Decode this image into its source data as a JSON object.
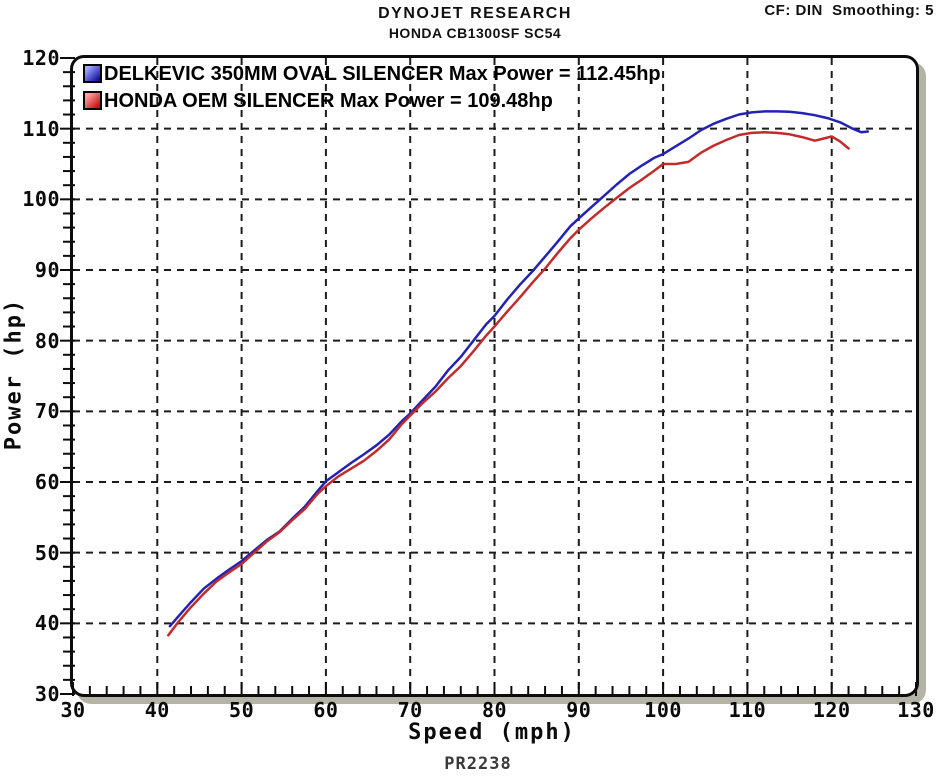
{
  "header": {
    "title": "DYNOJET RESEARCH",
    "subtitle": "HONDA CB1300SF SC54",
    "cf_label": "CF: DIN  Smoothing: 5"
  },
  "footer": {
    "run_id": "PR2238"
  },
  "colors": {
    "grid": "#1c1c1c",
    "frame": "#0c0c0c",
    "frame_shadow": "#b4b4a6",
    "background": "#ffffff",
    "delkevic_line": "#2323b2",
    "oem_line": "#c22b2b"
  },
  "chart_data": {
    "type": "line",
    "title": "DYNOJET RESEARCH — HONDA CB1300SF SC54",
    "xlabel": "Speed (mph)",
    "ylabel": "Power (hp)",
    "xlim": [
      30,
      130
    ],
    "ylim": [
      30,
      120
    ],
    "x_major_step": 10,
    "x_minor_step": 2,
    "y_major_step": 10,
    "y_minor_step": 2,
    "grid": "dashed",
    "legend_position": "top-left",
    "x_tick_labels": [
      "30",
      "40",
      "50",
      "60",
      "70",
      "80",
      "90",
      "100",
      "110",
      "120",
      "130"
    ],
    "y_tick_labels": [
      "30",
      "40",
      "50",
      "60",
      "70",
      "80",
      "90",
      "100",
      "110",
      "120"
    ],
    "series": [
      {
        "name": "DELKEVIC 350MM OVAL SILENCER",
        "label": "DELKEVIC 350MM OVAL SILENCER Max Power = 112.45hp",
        "max_power_hp": 112.45,
        "color": "#2323b2",
        "swatch_gradient": [
          "#a0a8ff",
          "#1111a0"
        ],
        "points": [
          [
            41.5,
            39.6
          ],
          [
            42.5,
            41.0
          ],
          [
            44,
            43.0
          ],
          [
            45.5,
            44.9
          ],
          [
            47,
            46.3
          ],
          [
            48.5,
            47.6
          ],
          [
            50,
            48.8
          ],
          [
            51.5,
            50.3
          ],
          [
            53,
            51.8
          ],
          [
            54.5,
            53.0
          ],
          [
            56,
            54.8
          ],
          [
            57.5,
            56.5
          ],
          [
            59,
            58.7
          ],
          [
            60,
            60.1
          ],
          [
            61.5,
            61.4
          ],
          [
            63,
            62.7
          ],
          [
            64.5,
            63.9
          ],
          [
            66,
            65.2
          ],
          [
            67.5,
            66.7
          ],
          [
            69,
            68.6
          ],
          [
            70,
            69.7
          ],
          [
            71.5,
            71.6
          ],
          [
            73,
            73.5
          ],
          [
            74.5,
            75.8
          ],
          [
            76,
            77.7
          ],
          [
            77.5,
            80.0
          ],
          [
            79,
            82.3
          ],
          [
            80,
            83.5
          ],
          [
            81.5,
            85.8
          ],
          [
            83,
            87.9
          ],
          [
            84.5,
            89.8
          ],
          [
            86,
            91.9
          ],
          [
            87.5,
            94.0
          ],
          [
            89,
            96.2
          ],
          [
            90,
            97.3
          ],
          [
            91.5,
            98.9
          ],
          [
            93,
            100.5
          ],
          [
            94.5,
            102.1
          ],
          [
            96,
            103.6
          ],
          [
            97.5,
            104.8
          ],
          [
            99,
            105.9
          ],
          [
            100,
            106.4
          ],
          [
            101.5,
            107.5
          ],
          [
            103,
            108.6
          ],
          [
            104.5,
            109.8
          ],
          [
            106,
            110.7
          ],
          [
            107.5,
            111.4
          ],
          [
            109,
            112.0
          ],
          [
            110.5,
            112.3
          ],
          [
            112,
            112.45
          ],
          [
            113.5,
            112.45
          ],
          [
            115,
            112.4
          ],
          [
            116.5,
            112.2
          ],
          [
            118,
            111.9
          ],
          [
            119.5,
            111.5
          ],
          [
            121,
            110.9
          ],
          [
            122.5,
            110.0
          ],
          [
            123.5,
            109.5
          ],
          [
            124.3,
            109.6
          ]
        ]
      },
      {
        "name": "HONDA OEM SILENCER",
        "label": "HONDA OEM SILENCER Max Power = 109.48hp",
        "max_power_hp": 109.48,
        "color": "#c22b2b",
        "swatch_gradient": [
          "#ffa2a2",
          "#c01010"
        ],
        "points": [
          [
            41.3,
            38.3
          ],
          [
            42.5,
            40.2
          ],
          [
            44,
            42.3
          ],
          [
            45.5,
            44.2
          ],
          [
            47,
            45.9
          ],
          [
            48.5,
            47.2
          ],
          [
            50,
            48.4
          ],
          [
            51.5,
            50.0
          ],
          [
            53,
            51.6
          ],
          [
            54.5,
            52.9
          ],
          [
            56,
            54.6
          ],
          [
            57.5,
            56.2
          ],
          [
            59,
            58.3
          ],
          [
            60,
            59.4
          ],
          [
            61.5,
            60.8
          ],
          [
            63,
            61.9
          ],
          [
            64.5,
            63.0
          ],
          [
            66,
            64.4
          ],
          [
            67.5,
            66.0
          ],
          [
            69,
            68.2
          ],
          [
            70,
            69.4
          ],
          [
            71.5,
            71.2
          ],
          [
            73,
            72.8
          ],
          [
            74.5,
            74.7
          ],
          [
            76,
            76.4
          ],
          [
            77.5,
            78.5
          ],
          [
            79,
            80.7
          ],
          [
            80,
            82.0
          ],
          [
            81.5,
            84.1
          ],
          [
            83,
            86.1
          ],
          [
            84.5,
            88.2
          ],
          [
            86,
            90.2
          ],
          [
            87.5,
            92.4
          ],
          [
            89,
            94.5
          ],
          [
            90,
            95.7
          ],
          [
            91.5,
            97.3
          ],
          [
            93,
            98.8
          ],
          [
            94.5,
            100.2
          ],
          [
            96,
            101.6
          ],
          [
            97.5,
            102.8
          ],
          [
            99,
            104.1
          ],
          [
            100,
            105.0
          ],
          [
            101.5,
            105.0
          ],
          [
            103,
            105.3
          ],
          [
            104.5,
            106.6
          ],
          [
            106,
            107.6
          ],
          [
            107.5,
            108.4
          ],
          [
            109,
            109.1
          ],
          [
            110.5,
            109.4
          ],
          [
            112,
            109.48
          ],
          [
            113.5,
            109.4
          ],
          [
            115,
            109.2
          ],
          [
            116.5,
            108.8
          ],
          [
            118,
            108.3
          ],
          [
            119,
            108.6
          ],
          [
            120,
            108.9
          ],
          [
            121,
            108.2
          ],
          [
            122,
            107.2
          ]
        ]
      }
    ]
  }
}
